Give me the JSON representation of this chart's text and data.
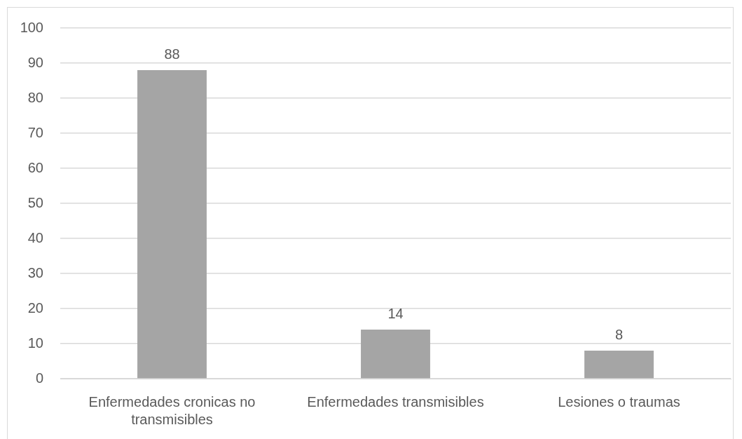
{
  "chart_data": {
    "type": "bar",
    "categories": [
      "Enfermedades cronicas no transmisibles",
      "Enfermedades transmisibles",
      "Lesiones o traumas"
    ],
    "values": [
      88,
      14,
      8
    ],
    "color": "#a5a5a5",
    "ylim": [
      0,
      100
    ],
    "yticks": [
      0,
      10,
      20,
      30,
      40,
      50,
      60,
      70,
      80,
      90,
      100
    ],
    "grid": "y",
    "data_labels": true
  }
}
